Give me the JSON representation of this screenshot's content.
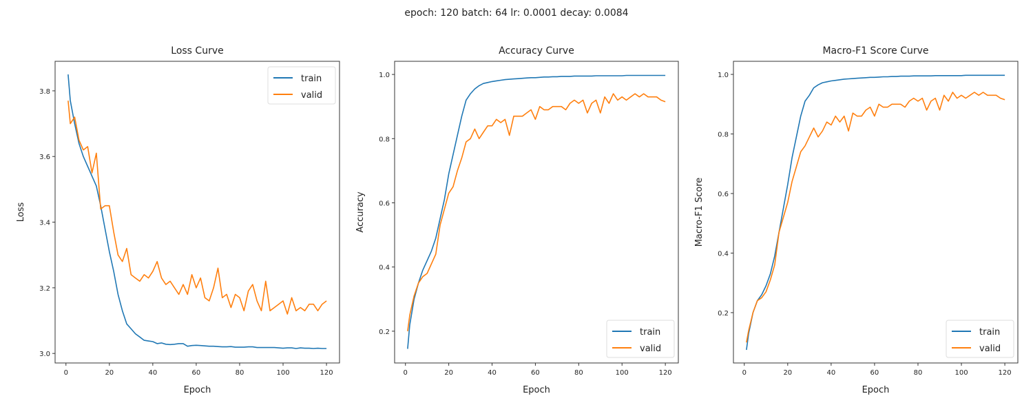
{
  "suptitle": "epoch: 120 batch: 64 lr: 0.0001 decay: 0.0084",
  "colors": {
    "train": "#1f77b4",
    "valid": "#ff7f0e"
  },
  "chart_data": [
    {
      "type": "line",
      "title": "Loss Curve",
      "xlabel": "Epoch",
      "ylabel": "Loss",
      "xlim": [
        -5,
        126
      ],
      "ylim": [
        2.971,
        3.89
      ],
      "xticks": [
        0,
        20,
        40,
        60,
        80,
        100,
        120
      ],
      "yticks": [
        3.0,
        3.2,
        3.4,
        3.6,
        3.8
      ],
      "ytick_labels": [
        "3.0",
        "3.2",
        "3.4",
        "3.6",
        "3.8"
      ],
      "legend": "top-right",
      "grid": false,
      "x": [
        1,
        2,
        4,
        6,
        8,
        10,
        12,
        14,
        16,
        18,
        20,
        22,
        24,
        26,
        28,
        30,
        32,
        34,
        36,
        38,
        40,
        42,
        44,
        46,
        48,
        50,
        52,
        54,
        56,
        58,
        60,
        62,
        64,
        66,
        68,
        70,
        72,
        74,
        76,
        78,
        80,
        82,
        84,
        86,
        88,
        90,
        92,
        94,
        96,
        98,
        100,
        102,
        104,
        106,
        108,
        110,
        112,
        114,
        116,
        118,
        120
      ],
      "series": [
        {
          "name": "train",
          "values": [
            3.85,
            3.77,
            3.7,
            3.64,
            3.6,
            3.57,
            3.54,
            3.51,
            3.45,
            3.38,
            3.31,
            3.25,
            3.18,
            3.13,
            3.09,
            3.075,
            3.06,
            3.05,
            3.04,
            3.038,
            3.036,
            3.03,
            3.032,
            3.028,
            3.027,
            3.028,
            3.03,
            3.03,
            3.022,
            3.024,
            3.025,
            3.024,
            3.023,
            3.022,
            3.022,
            3.021,
            3.02,
            3.02,
            3.021,
            3.019,
            3.019,
            3.019,
            3.02,
            3.02,
            3.018,
            3.018,
            3.018,
            3.018,
            3.018,
            3.017,
            3.016,
            3.017,
            3.017,
            3.015,
            3.017,
            3.016,
            3.016,
            3.015,
            3.016,
            3.015,
            3.015
          ]
        },
        {
          "name": "valid",
          "values": [
            3.77,
            3.7,
            3.72,
            3.65,
            3.62,
            3.63,
            3.55,
            3.61,
            3.44,
            3.45,
            3.45,
            3.37,
            3.3,
            3.28,
            3.32,
            3.24,
            3.23,
            3.22,
            3.24,
            3.23,
            3.25,
            3.28,
            3.23,
            3.21,
            3.22,
            3.2,
            3.18,
            3.21,
            3.18,
            3.24,
            3.2,
            3.23,
            3.17,
            3.16,
            3.2,
            3.26,
            3.17,
            3.18,
            3.14,
            3.18,
            3.17,
            3.13,
            3.19,
            3.21,
            3.16,
            3.13,
            3.22,
            3.13,
            3.14,
            3.15,
            3.16,
            3.12,
            3.17,
            3.13,
            3.14,
            3.13,
            3.15,
            3.15,
            3.13,
            3.15,
            3.16
          ]
        }
      ]
    },
    {
      "type": "line",
      "title": "Accuracy Curve",
      "xlabel": "Epoch",
      "ylabel": "Accuracy",
      "xlim": [
        -5,
        126
      ],
      "ylim": [
        0.101,
        1.041
      ],
      "xticks": [
        0,
        20,
        40,
        60,
        80,
        100,
        120
      ],
      "yticks": [
        0.2,
        0.4,
        0.6,
        0.8,
        1.0
      ],
      "ytick_labels": [
        "0.2",
        "0.4",
        "0.6",
        "0.8",
        "1.0"
      ],
      "legend": "bottom-right",
      "grid": false,
      "x": [
        1,
        2,
        4,
        6,
        8,
        10,
        12,
        14,
        16,
        18,
        20,
        22,
        24,
        26,
        28,
        30,
        32,
        34,
        36,
        38,
        40,
        42,
        44,
        46,
        48,
        50,
        52,
        54,
        56,
        58,
        60,
        62,
        64,
        66,
        68,
        70,
        72,
        74,
        76,
        78,
        80,
        82,
        84,
        86,
        88,
        90,
        92,
        94,
        96,
        98,
        100,
        102,
        104,
        106,
        108,
        110,
        112,
        114,
        116,
        118,
        120
      ],
      "series": [
        {
          "name": "train",
          "values": [
            0.145,
            0.22,
            0.3,
            0.35,
            0.39,
            0.42,
            0.45,
            0.49,
            0.55,
            0.61,
            0.69,
            0.75,
            0.81,
            0.87,
            0.92,
            0.94,
            0.955,
            0.965,
            0.972,
            0.975,
            0.978,
            0.98,
            0.982,
            0.984,
            0.985,
            0.986,
            0.987,
            0.988,
            0.989,
            0.99,
            0.99,
            0.991,
            0.992,
            0.992,
            0.993,
            0.993,
            0.994,
            0.994,
            0.994,
            0.995,
            0.995,
            0.995,
            0.995,
            0.995,
            0.996,
            0.996,
            0.996,
            0.996,
            0.996,
            0.996,
            0.996,
            0.997,
            0.997,
            0.997,
            0.997,
            0.997,
            0.997,
            0.997,
            0.997,
            0.997,
            0.997
          ]
        },
        {
          "name": "valid",
          "values": [
            0.2,
            0.25,
            0.31,
            0.35,
            0.37,
            0.38,
            0.41,
            0.44,
            0.53,
            0.58,
            0.63,
            0.65,
            0.7,
            0.74,
            0.79,
            0.8,
            0.83,
            0.8,
            0.82,
            0.84,
            0.84,
            0.86,
            0.85,
            0.86,
            0.81,
            0.87,
            0.87,
            0.87,
            0.88,
            0.89,
            0.86,
            0.9,
            0.89,
            0.89,
            0.9,
            0.9,
            0.9,
            0.89,
            0.91,
            0.92,
            0.91,
            0.92,
            0.88,
            0.91,
            0.92,
            0.88,
            0.93,
            0.91,
            0.94,
            0.92,
            0.93,
            0.92,
            0.93,
            0.94,
            0.93,
            0.94,
            0.93,
            0.93,
            0.93,
            0.92,
            0.915
          ]
        }
      ]
    },
    {
      "type": "line",
      "title": "Macro-F1 Score Curve",
      "xlabel": "Epoch",
      "ylabel": "Macro-F1 Score",
      "xlim": [
        -5,
        126
      ],
      "ylim": [
        0.031,
        1.044
      ],
      "xticks": [
        0,
        20,
        40,
        60,
        80,
        100,
        120
      ],
      "yticks": [
        0.2,
        0.4,
        0.6,
        0.8,
        1.0
      ],
      "ytick_labels": [
        "0.2",
        "0.4",
        "0.6",
        "0.8",
        "1.0"
      ],
      "legend": "bottom-right",
      "grid": false,
      "x": [
        1,
        2,
        4,
        6,
        8,
        10,
        12,
        14,
        16,
        18,
        20,
        22,
        24,
        26,
        28,
        30,
        32,
        34,
        36,
        38,
        40,
        42,
        44,
        46,
        48,
        50,
        52,
        54,
        56,
        58,
        60,
        62,
        64,
        66,
        68,
        70,
        72,
        74,
        76,
        78,
        80,
        82,
        84,
        86,
        88,
        90,
        92,
        94,
        96,
        98,
        100,
        102,
        104,
        106,
        108,
        110,
        112,
        114,
        116,
        118,
        120
      ],
      "series": [
        {
          "name": "train",
          "values": [
            0.075,
            0.13,
            0.2,
            0.24,
            0.26,
            0.29,
            0.33,
            0.39,
            0.47,
            0.55,
            0.63,
            0.72,
            0.79,
            0.86,
            0.91,
            0.93,
            0.955,
            0.965,
            0.972,
            0.975,
            0.978,
            0.98,
            0.982,
            0.984,
            0.985,
            0.986,
            0.987,
            0.988,
            0.989,
            0.99,
            0.99,
            0.991,
            0.992,
            0.992,
            0.993,
            0.993,
            0.994,
            0.994,
            0.994,
            0.995,
            0.995,
            0.995,
            0.995,
            0.995,
            0.996,
            0.996,
            0.996,
            0.996,
            0.996,
            0.996,
            0.996,
            0.997,
            0.997,
            0.997,
            0.997,
            0.997,
            0.997,
            0.997,
            0.997,
            0.997,
            0.997
          ]
        },
        {
          "name": "valid",
          "values": [
            0.1,
            0.14,
            0.2,
            0.24,
            0.25,
            0.27,
            0.31,
            0.36,
            0.47,
            0.52,
            0.57,
            0.64,
            0.69,
            0.74,
            0.76,
            0.79,
            0.82,
            0.79,
            0.81,
            0.84,
            0.83,
            0.86,
            0.84,
            0.86,
            0.81,
            0.87,
            0.86,
            0.86,
            0.88,
            0.89,
            0.86,
            0.9,
            0.89,
            0.89,
            0.9,
            0.9,
            0.9,
            0.89,
            0.91,
            0.92,
            0.91,
            0.92,
            0.88,
            0.91,
            0.92,
            0.88,
            0.93,
            0.91,
            0.94,
            0.92,
            0.93,
            0.92,
            0.93,
            0.94,
            0.93,
            0.94,
            0.93,
            0.93,
            0.93,
            0.92,
            0.915
          ]
        }
      ]
    }
  ]
}
